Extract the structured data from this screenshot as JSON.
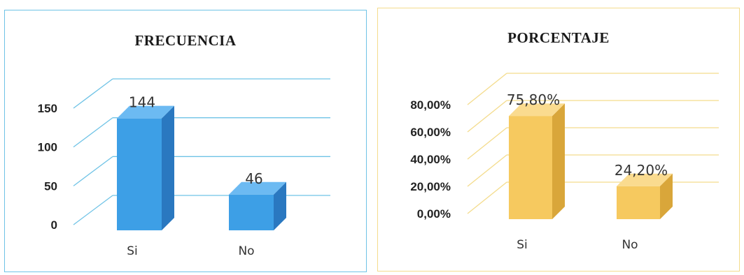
{
  "charts": [
    {
      "title": "FRECUENCIA"
    },
    {
      "title": "PORCENTAJE"
    }
  ],
  "chart_data": [
    {
      "type": "bar",
      "title": "FRECUENCIA",
      "categories": [
        "Si",
        "No"
      ],
      "values": [
        144,
        46
      ],
      "data_labels": [
        "144",
        "46"
      ],
      "yticks": [
        "0",
        "50",
        "100",
        "150"
      ],
      "ylim": [
        0,
        150
      ],
      "grid": true,
      "legend": "none",
      "style": "3d",
      "colors": {
        "bar": "#3d9fe6",
        "bar_side": "#2a78c0",
        "bar_top": "#6cbaf2",
        "grid": "#6fc3e6",
        "border": "#6fc3e6"
      }
    },
    {
      "type": "bar",
      "title": "PORCENTAJE",
      "categories": [
        "Si",
        "No"
      ],
      "values": [
        75.8,
        24.2
      ],
      "data_labels": [
        "75,80%",
        "24,20%"
      ],
      "yticks": [
        "0,00%",
        "20,00%",
        "40,00%",
        "60,00%",
        "80,00%"
      ],
      "ylim": [
        0,
        80
      ],
      "grid": true,
      "legend": "none",
      "style": "3d",
      "colors": {
        "bar": "#f6c95f",
        "bar_side": "#d9a63a",
        "bar_top": "#fadb8f",
        "grid": "#f4dc8c",
        "border": "#f4dc8c"
      }
    }
  ]
}
